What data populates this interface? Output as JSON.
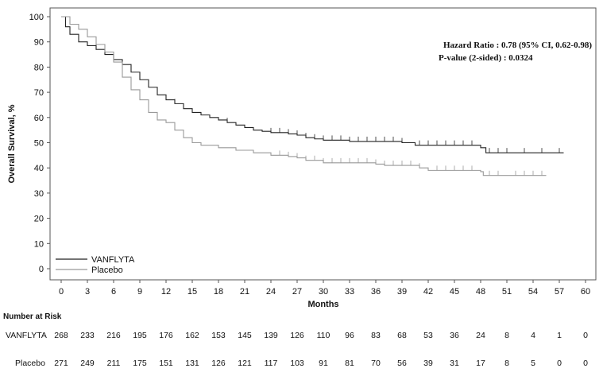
{
  "chart_data": {
    "type": "line",
    "subtype": "kaplan-meier",
    "xlabel": "Months",
    "ylabel": "Overall Survival, %",
    "xlim": [
      0,
      60
    ],
    "ylim": [
      0,
      100
    ],
    "xticks": [
      0,
      3,
      6,
      9,
      12,
      15,
      18,
      21,
      24,
      27,
      30,
      33,
      36,
      39,
      42,
      45,
      48,
      51,
      54,
      57,
      60
    ],
    "yticks": [
      0,
      10,
      20,
      30,
      40,
      50,
      60,
      70,
      80,
      90,
      100
    ],
    "grid": false,
    "legend_position": "bottom-left",
    "annotations": [
      "Hazard Ratio : 0.78 (95% CI, 0.62-0.98)",
      "P-value (2-sided) : 0.0324"
    ],
    "series": [
      {
        "name": "VANFLYTA",
        "color": "#222222",
        "points": [
          [
            0,
            100
          ],
          [
            0.5,
            96
          ],
          [
            1,
            93
          ],
          [
            2,
            90
          ],
          [
            3,
            88.5
          ],
          [
            4,
            87
          ],
          [
            5,
            85
          ],
          [
            6,
            83
          ],
          [
            7,
            81
          ],
          [
            8,
            78
          ],
          [
            9,
            75
          ],
          [
            10,
            72
          ],
          [
            11,
            69
          ],
          [
            12,
            67
          ],
          [
            13,
            65.5
          ],
          [
            14,
            63.5
          ],
          [
            15,
            62
          ],
          [
            16,
            61
          ],
          [
            17,
            60
          ],
          [
            18,
            59
          ],
          [
            19,
            58
          ],
          [
            20,
            57
          ],
          [
            21,
            56
          ],
          [
            22,
            55
          ],
          [
            23,
            54.5
          ],
          [
            24,
            54
          ],
          [
            26,
            53.5
          ],
          [
            27,
            53
          ],
          [
            28,
            52
          ],
          [
            29,
            51.5
          ],
          [
            30,
            51
          ],
          [
            33,
            50.5
          ],
          [
            39,
            50
          ],
          [
            40.5,
            49
          ],
          [
            48,
            48
          ],
          [
            48.6,
            46
          ],
          [
            57.5,
            46
          ]
        ],
        "censored": [
          2,
          4,
          13,
          19,
          24,
          25,
          26,
          27,
          28,
          29,
          30,
          31,
          32,
          33,
          34,
          35,
          36,
          37,
          38,
          39,
          41,
          42,
          43,
          44,
          45,
          46,
          47,
          49,
          50,
          51,
          53,
          55,
          57
        ]
      },
      {
        "name": "Placebo",
        "color": "#999999",
        "points": [
          [
            0,
            100
          ],
          [
            1,
            97
          ],
          [
            2,
            95
          ],
          [
            3,
            92
          ],
          [
            4,
            89
          ],
          [
            5,
            86
          ],
          [
            6,
            82
          ],
          [
            7,
            76
          ],
          [
            8,
            71
          ],
          [
            9,
            67
          ],
          [
            10,
            62
          ],
          [
            11,
            59
          ],
          [
            12,
            58
          ],
          [
            13,
            55
          ],
          [
            14,
            52
          ],
          [
            15,
            50
          ],
          [
            16,
            49
          ],
          [
            18,
            48
          ],
          [
            20,
            47
          ],
          [
            22,
            46
          ],
          [
            24,
            45
          ],
          [
            26,
            44.5
          ],
          [
            27,
            44
          ],
          [
            28,
            43
          ],
          [
            30,
            42
          ],
          [
            36,
            41.5
          ],
          [
            37,
            41
          ],
          [
            41,
            40
          ],
          [
            42,
            39
          ],
          [
            48,
            38.5
          ],
          [
            48.3,
            37
          ],
          [
            55.5,
            37
          ]
        ],
        "censored": [
          1,
          3,
          10,
          11,
          25,
          26,
          27,
          28,
          29,
          30,
          31,
          32,
          33,
          34,
          35,
          36,
          37,
          38,
          39,
          40,
          41,
          43,
          44,
          45,
          46,
          47,
          49,
          50,
          52,
          53,
          54,
          55
        ]
      }
    ],
    "risk_table": {
      "title": "Number at Risk",
      "rows": [
        {
          "label": "VANFLYTA",
          "values": [
            268,
            233,
            216,
            195,
            176,
            162,
            153,
            145,
            139,
            126,
            110,
            96,
            83,
            68,
            53,
            36,
            24,
            8,
            4,
            1,
            0
          ]
        },
        {
          "label": "Placebo",
          "values": [
            271,
            249,
            211,
            175,
            151,
            131,
            126,
            121,
            117,
            103,
            91,
            81,
            70,
            56,
            39,
            31,
            17,
            8,
            5,
            0,
            0
          ]
        }
      ]
    }
  }
}
